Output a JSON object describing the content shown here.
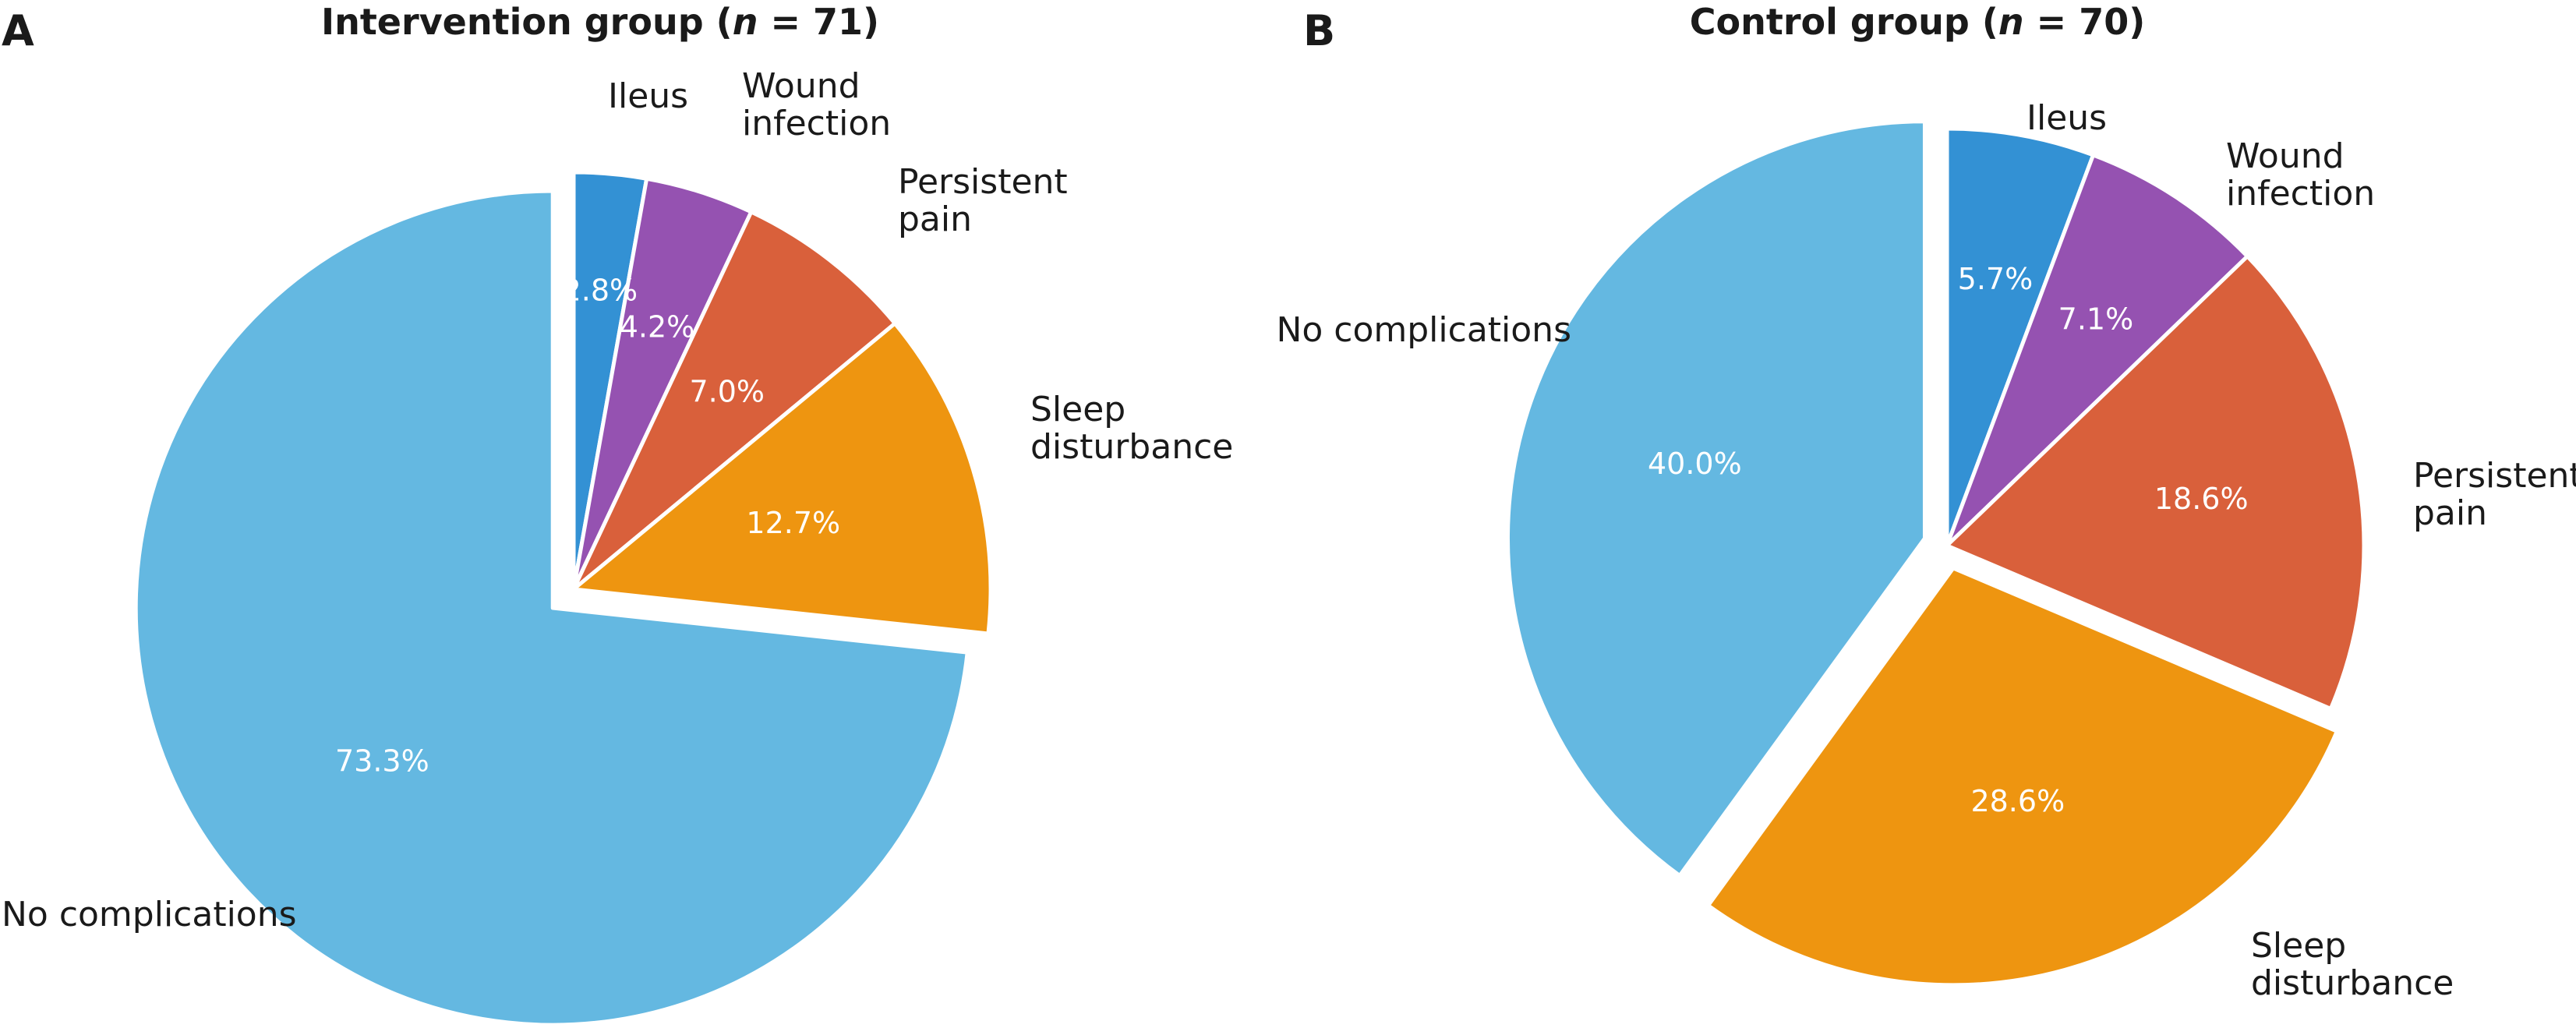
{
  "chart_data": [
    {
      "type": "pie",
      "panel": "A",
      "title_prefix": "Intervention group (",
      "title_n": "n",
      "title_suffix": " = 71)",
      "slices": [
        {
          "label_lines": [
            "Ileus"
          ],
          "value": 2.8,
          "value_label": "2.8%",
          "color": "#3391d4"
        },
        {
          "label_lines": [
            "Wound",
            "infection"
          ],
          "value": 4.2,
          "value_label": "4.2%",
          "color": "#9552b1"
        },
        {
          "label_lines": [
            "Persistent",
            "pain"
          ],
          "value": 7.0,
          "value_label": "7.0%",
          "color": "#d9603b"
        },
        {
          "label_lines": [
            "Sleep",
            "disturbance"
          ],
          "value": 12.7,
          "value_label": "12.7%",
          "color": "#ee9510"
        },
        {
          "label_lines": [
            "No complications"
          ],
          "value": 73.3,
          "value_label": "73.3%",
          "color": "#64b8e1"
        }
      ]
    },
    {
      "type": "pie",
      "panel": "B",
      "title_prefix": "Control group (",
      "title_n": "n",
      "title_suffix": " = 70)",
      "slices": [
        {
          "label_lines": [
            "Ileus"
          ],
          "value": 5.7,
          "value_label": "5.7%",
          "color": "#3391d4"
        },
        {
          "label_lines": [
            "Wound",
            "infection"
          ],
          "value": 7.1,
          "value_label": "7.1%",
          "color": "#9552b1"
        },
        {
          "label_lines": [
            "Persistent",
            "pain"
          ],
          "value": 18.6,
          "value_label": "18.6%",
          "color": "#d9603b"
        },
        {
          "label_lines": [
            "Sleep",
            "disturbance"
          ],
          "value": 28.6,
          "value_label": "28.6%",
          "color": "#ee9510"
        },
        {
          "label_lines": [
            "No complications"
          ],
          "value": 40.0,
          "value_label": "40.0%",
          "color": "#64b8e1"
        }
      ]
    }
  ]
}
